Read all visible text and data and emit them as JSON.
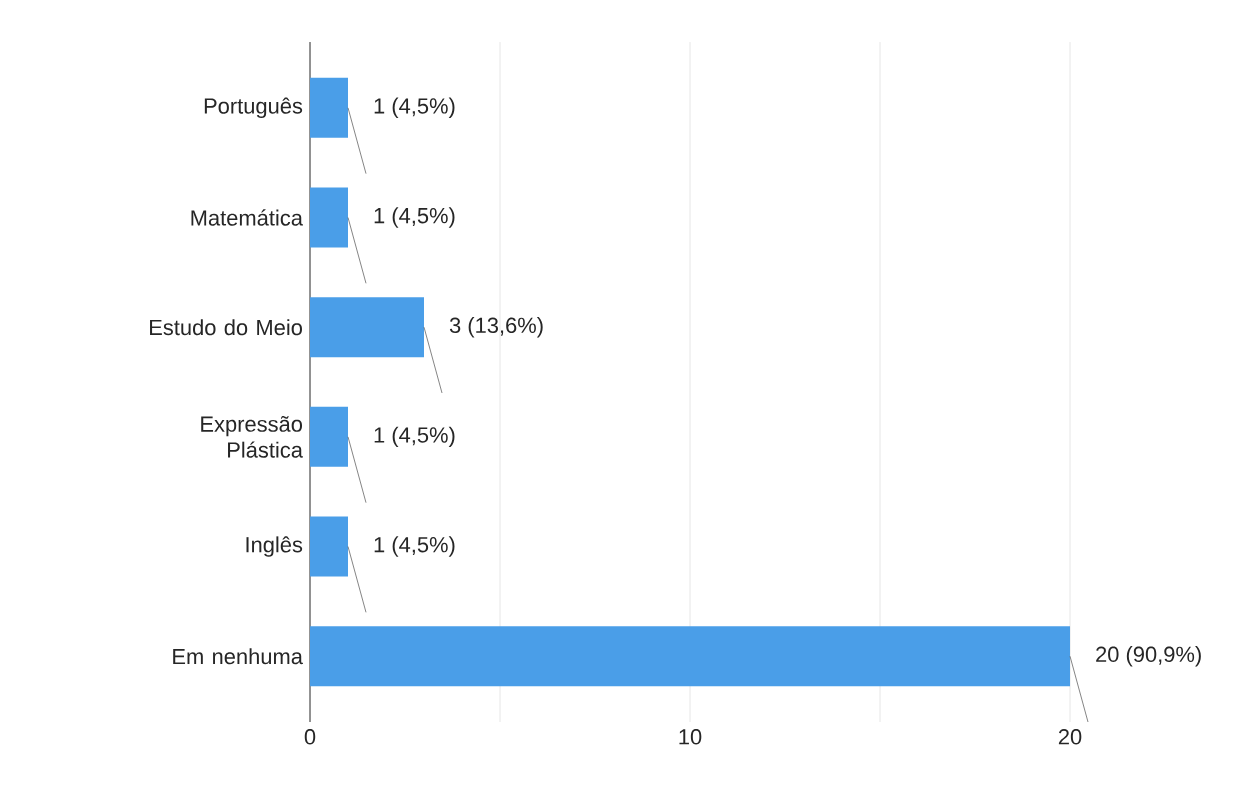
{
  "chart_data": {
    "type": "bar",
    "orientation": "horizontal",
    "categories": [
      "Português",
      "Matemática",
      "Estudo do Meio",
      "Expressão Plástica",
      "Inglês",
      "Em nenhuma"
    ],
    "values": [
      1,
      1,
      3,
      1,
      1,
      20
    ],
    "value_labels": [
      "1 (4,5%)",
      "1 (4,5%)",
      "3 (13,6%)",
      "1 (4,5%)",
      "1 (4,5%)",
      "20 (90,9%)"
    ],
    "color": "#4a9ee8",
    "xlim": [
      0,
      20
    ],
    "xticks": [
      0,
      {
        "value": 5,
        "label": null
      },
      10,
      {
        "value": 15,
        "label": null
      },
      20
    ],
    "grid": "x"
  }
}
